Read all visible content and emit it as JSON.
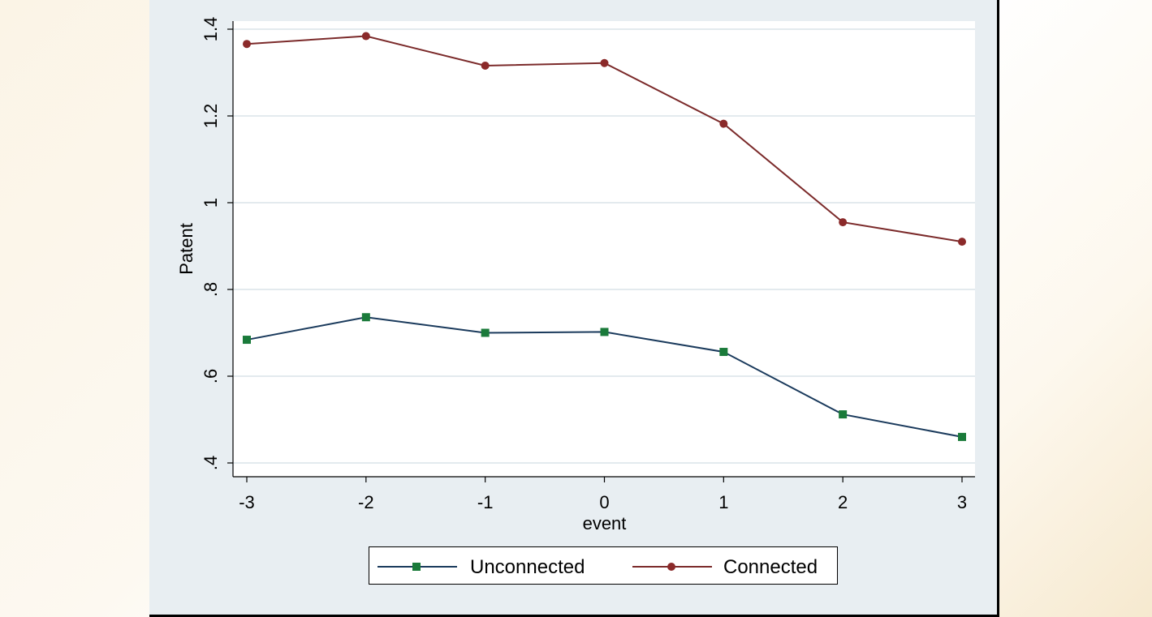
{
  "chart_data": {
    "type": "line",
    "x": [
      -3,
      -2,
      -1,
      0,
      1,
      2,
      3
    ],
    "series": [
      {
        "name": "Unconnected",
        "values": [
          0.684,
          0.736,
          0.7,
          0.702,
          0.656,
          0.512,
          0.46
        ],
        "color": "#1a3a5c",
        "marker": "square",
        "marker_color": "#1a7a3a"
      },
      {
        "name": "Connected",
        "values": [
          1.366,
          1.384,
          1.316,
          1.322,
          1.182,
          0.955,
          0.91
        ],
        "color": "#7b2a2a",
        "marker": "circle",
        "marker_color": "#8b2a2a"
      }
    ],
    "title": "",
    "xlabel": "event",
    "ylabel": "Patent",
    "xlim": [
      -3,
      3
    ],
    "ylim": [
      0.4,
      1.4
    ],
    "x_ticks": [
      -3,
      -2,
      -1,
      0,
      1,
      2,
      3
    ],
    "x_tick_labels": [
      "-3",
      "-2",
      "-1",
      "0",
      "1",
      "2",
      "3"
    ],
    "y_ticks": [
      0.4,
      0.6,
      0.8,
      1.0,
      1.2,
      1.4
    ],
    "y_tick_labels": [
      ".4",
      ".6",
      ".8",
      "1",
      "1.2",
      "1.4"
    ],
    "grid": true,
    "legend_position": "bottom"
  }
}
